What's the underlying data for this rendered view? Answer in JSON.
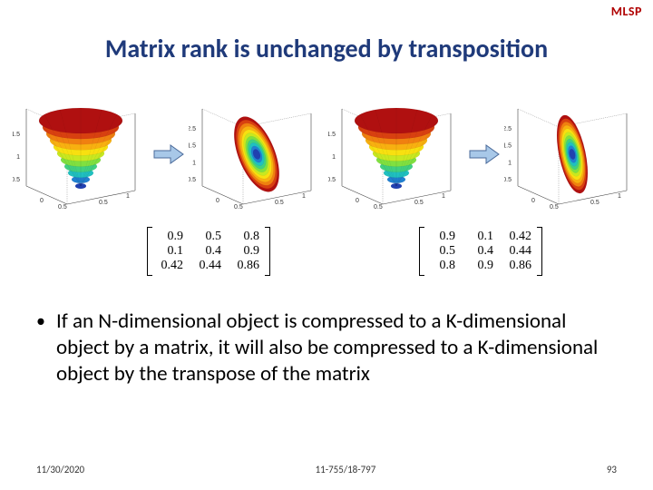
{
  "logo_text": "MLSP",
  "title": "Matrix rank is unchanged by transposition",
  "arrow_fill": "#a8c8e8",
  "arrow_stroke": "#4a6a9a",
  "surface_colors": [
    "#b01010",
    "#d84010",
    "#f08010",
    "#f8b010",
    "#f8e010",
    "#c8e820",
    "#80e040",
    "#40d080",
    "#20c0c0",
    "#2080d0",
    "#2040b0"
  ],
  "axis_color": "#444444",
  "y_ticks_full": [
    "0.5",
    "1",
    "1.5"
  ],
  "y_ticks_ellipse": [
    "0.5",
    "1",
    "1.5",
    "2.5"
  ],
  "matrix_a": [
    [
      "0.9",
      "0.5",
      "0.8"
    ],
    [
      "0.1",
      "0.4",
      "0.9"
    ],
    [
      "0.42",
      "0.44",
      "0.86"
    ]
  ],
  "matrix_b": [
    [
      "0.9",
      "0.1",
      "0.42"
    ],
    [
      "0.5",
      "0.4",
      "0.44"
    ],
    [
      "0.8",
      "0.9",
      "0.86"
    ]
  ],
  "bullet_text": "If an N-dimensional object is compressed to a K-dimensional object by a matrix, it will also be compressed to a K-dimensional object by the transpose of the matrix",
  "footer_date": "11/30/2020",
  "footer_course": "11-755/18-797",
  "footer_page": "93"
}
